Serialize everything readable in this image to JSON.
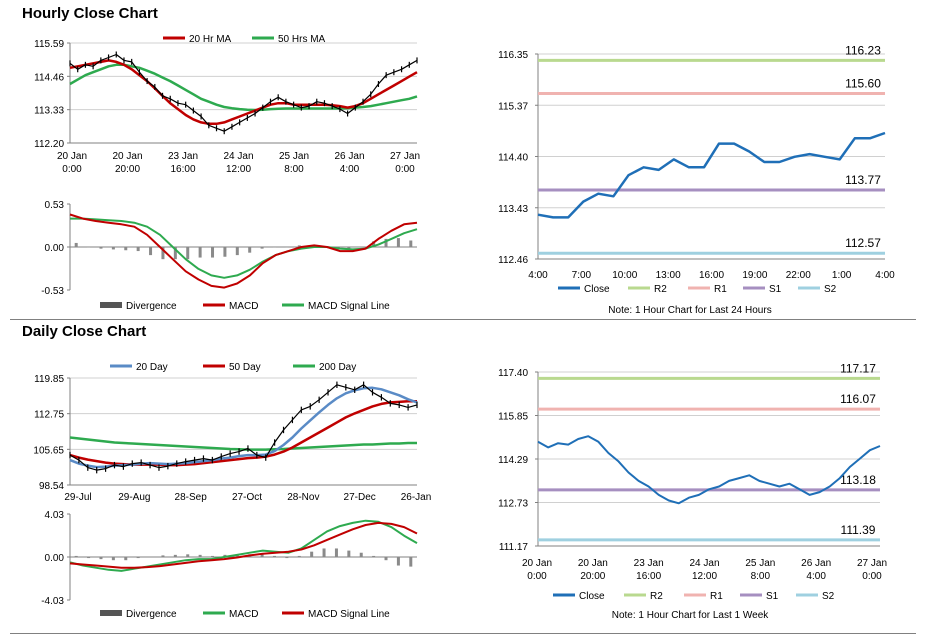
{
  "sections": {
    "hourly_title": "Hourly Close Chart",
    "daily_title": "Daily Close Chart"
  },
  "colors": {
    "ma_short": "#c00000",
    "ma_long": "#2eaa4f",
    "ma_20day": "#5a8bc6",
    "close": "#1f6fb7",
    "r2": "#b9d98f",
    "r1": "#f0b3b0",
    "s1": "#a68fc0",
    "s2": "#9fd0e0",
    "divergence": "#8a8a8a",
    "price": "#000000"
  },
  "chart_data": [
    {
      "id": "hourly_price",
      "type": "line",
      "legend": [
        "20 Hr MA",
        "50 Hrs MA"
      ],
      "legend_position": "top",
      "yticks": [
        "115.59",
        "114.46",
        "113.33",
        "112.20"
      ],
      "ylim": [
        112.2,
        115.59
      ],
      "xticks": [
        [
          "20 Jan",
          "0:00"
        ],
        [
          "20 Jan",
          "20:00"
        ],
        [
          "23 Jan",
          "16:00"
        ],
        [
          "24 Jan",
          "12:00"
        ],
        [
          "25 Jan",
          "8:00"
        ],
        [
          "26 Jan",
          "4:00"
        ],
        [
          "27 Jan",
          "0:00"
        ]
      ],
      "price": [
        114.9,
        114.7,
        114.85,
        114.8,
        115.0,
        115.1,
        115.2,
        115.0,
        114.95,
        114.6,
        114.3,
        114.1,
        113.8,
        113.7,
        113.55,
        113.5,
        113.3,
        113.1,
        112.8,
        112.7,
        112.6,
        112.75,
        112.9,
        113.05,
        113.2,
        113.4,
        113.6,
        113.75,
        113.6,
        113.5,
        113.4,
        113.45,
        113.6,
        113.55,
        113.45,
        113.35,
        113.2,
        113.4,
        113.6,
        113.85,
        114.2,
        114.5,
        114.6,
        114.7,
        114.85,
        115.0
      ],
      "ma_20hr": [
        114.75,
        114.8,
        114.85,
        114.9,
        114.95,
        115.0,
        114.95,
        114.85,
        114.7,
        114.5,
        114.3,
        114.05,
        113.8,
        113.55,
        113.35,
        113.15,
        113.0,
        112.9,
        112.85,
        112.85,
        112.9,
        113.0,
        113.1,
        113.2,
        113.3,
        113.4,
        113.5,
        113.55,
        113.55,
        113.5,
        113.5,
        113.5,
        113.5,
        113.5,
        113.48,
        113.45,
        113.4,
        113.45,
        113.55,
        113.7,
        113.85,
        114.0,
        114.15,
        114.3,
        114.45,
        114.6
      ],
      "ma_50hr": [
        114.2,
        114.35,
        114.5,
        114.6,
        114.7,
        114.8,
        114.85,
        114.85,
        114.8,
        114.75,
        114.65,
        114.55,
        114.42,
        114.3,
        114.15,
        114.0,
        113.85,
        113.7,
        113.6,
        113.5,
        113.42,
        113.38,
        113.35,
        113.33,
        113.32,
        113.33,
        113.35,
        113.36,
        113.37,
        113.37,
        113.37,
        113.37,
        113.37,
        113.37,
        113.37,
        113.37,
        113.38,
        113.4,
        113.42,
        113.45,
        113.5,
        113.55,
        113.6,
        113.65,
        113.7,
        113.78
      ]
    },
    {
      "id": "hourly_macd",
      "type": "line",
      "legend": [
        "Divergence",
        "MACD",
        "MACD Signal Line"
      ],
      "legend_position": "bottom",
      "yticks": [
        "0.53",
        "0.00",
        "-0.53"
      ],
      "ylim": [
        -0.53,
        0.53
      ],
      "macd": [
        0.4,
        0.35,
        0.32,
        0.3,
        0.28,
        0.25,
        0.15,
        0.0,
        -0.15,
        -0.3,
        -0.4,
        -0.48,
        -0.5,
        -0.45,
        -0.35,
        -0.2,
        -0.1,
        -0.05,
        0.0,
        0.02,
        0.0,
        -0.05,
        -0.05,
        -0.02,
        0.1,
        0.2,
        0.28,
        0.3
      ],
      "signal": [
        0.35,
        0.35,
        0.34,
        0.33,
        0.32,
        0.3,
        0.25,
        0.15,
        0.0,
        -0.15,
        -0.27,
        -0.35,
        -0.38,
        -0.35,
        -0.28,
        -0.18,
        -0.1,
        -0.05,
        -0.02,
        0.0,
        0.0,
        -0.02,
        -0.03,
        -0.02,
        0.03,
        0.1,
        0.17,
        0.22
      ],
      "divergence": [
        0.05,
        0.0,
        -0.02,
        -0.03,
        -0.04,
        -0.05,
        -0.1,
        -0.15,
        -0.15,
        -0.15,
        -0.13,
        -0.13,
        -0.12,
        -0.1,
        -0.07,
        -0.02,
        0.0,
        0.0,
        0.02,
        0.02,
        0.0,
        -0.03,
        -0.02,
        0.0,
        0.07,
        0.1,
        0.11,
        0.08
      ]
    },
    {
      "id": "hourly_levels",
      "type": "line",
      "legend": [
        "Close",
        "R2",
        "R1",
        "S1",
        "S2"
      ],
      "legend_position": "bottom",
      "note": "Note: 1 Hour Chart for Last 24 Hours",
      "yticks": [
        "116.35",
        "115.37",
        "114.40",
        "113.43",
        "112.46"
      ],
      "ylim": [
        112.46,
        116.35
      ],
      "xticks": [
        "4:00",
        "7:00",
        "10:00",
        "13:00",
        "16:00",
        "19:00",
        "22:00",
        "1:00",
        "4:00"
      ],
      "close": [
        113.3,
        113.25,
        113.25,
        113.55,
        113.7,
        113.65,
        114.05,
        114.2,
        114.15,
        114.35,
        114.2,
        114.2,
        114.65,
        114.65,
        114.5,
        114.3,
        114.3,
        114.4,
        114.45,
        114.4,
        114.35,
        114.75,
        114.75,
        114.85
      ],
      "levels": {
        "R2": 116.23,
        "R1": 115.6,
        "S1": 113.77,
        "S2": 112.57
      },
      "level_labels": [
        "116.23",
        "115.60",
        "113.77",
        "112.57"
      ]
    },
    {
      "id": "daily_price",
      "type": "line",
      "legend": [
        "20 Day",
        "50 Day",
        "200 Day"
      ],
      "legend_position": "top",
      "yticks": [
        "119.85",
        "112.75",
        "105.65",
        "98.54"
      ],
      "ylim": [
        98.54,
        119.85
      ],
      "xticks": [
        "29-Jul",
        "29-Aug",
        "28-Sep",
        "27-Oct",
        "28-Nov",
        "27-Dec",
        "26-Jan"
      ],
      "price": [
        104.5,
        103.5,
        102.0,
        101.5,
        101.8,
        102.5,
        102.2,
        102.8,
        103.0,
        102.5,
        102.0,
        102.3,
        102.8,
        103.2,
        103.5,
        103.8,
        103.5,
        104.2,
        104.8,
        105.2,
        105.8,
        104.5,
        104.0,
        107.0,
        109.5,
        111.5,
        113.5,
        114.2,
        115.5,
        117.0,
        118.5,
        118.0,
        117.5,
        118.5,
        117.0,
        116.0,
        114.8,
        114.5,
        114.0,
        114.5
      ],
      "ma_20day": [
        103.5,
        102.8,
        102.4,
        102.1,
        102.2,
        102.4,
        102.5,
        102.6,
        102.8,
        102.9,
        102.8,
        102.7,
        102.8,
        102.9,
        103.1,
        103.3,
        103.5,
        103.8,
        104.0,
        104.3,
        104.5,
        104.5,
        104.6,
        105.3,
        106.5,
        108.0,
        109.8,
        111.4,
        113.0,
        114.5,
        115.8,
        116.8,
        117.4,
        117.8,
        117.9,
        117.6,
        117.0,
        116.4,
        115.6,
        115.0
      ],
      "ma_50day": [
        104.5,
        104.0,
        103.6,
        103.3,
        103.0,
        102.8,
        102.7,
        102.6,
        102.6,
        102.6,
        102.6,
        102.5,
        102.5,
        102.6,
        102.7,
        102.9,
        103.1,
        103.3,
        103.5,
        103.7,
        103.9,
        104.0,
        104.2,
        104.6,
        105.2,
        106.0,
        107.0,
        108.0,
        109.0,
        110.0,
        111.0,
        112.0,
        112.8,
        113.5,
        114.2,
        114.7,
        115.0,
        115.1,
        115.2,
        115.2
      ],
      "ma_200day": [
        108.0,
        107.8,
        107.6,
        107.4,
        107.2,
        107.0,
        106.9,
        106.8,
        106.7,
        106.6,
        106.5,
        106.4,
        106.3,
        106.2,
        106.1,
        106.0,
        105.9,
        105.8,
        105.7,
        105.65,
        105.6,
        105.6,
        105.6,
        105.65,
        105.7,
        105.8,
        105.9,
        106.0,
        106.1,
        106.2,
        106.3,
        106.4,
        106.5,
        106.6,
        106.6,
        106.7,
        106.8,
        106.8,
        106.9,
        106.9
      ]
    },
    {
      "id": "daily_macd",
      "type": "line",
      "legend": [
        "Divergence",
        "MACD",
        "MACD Signal Line"
      ],
      "legend_position": "bottom",
      "yticks": [
        "4.03",
        "0.00",
        "-4.03"
      ],
      "ylim": [
        -4.03,
        4.03
      ],
      "macd": [
        -0.5,
        -0.8,
        -1.0,
        -1.2,
        -1.3,
        -1.1,
        -0.9,
        -0.7,
        -0.5,
        -0.3,
        -0.2,
        -0.2,
        0.0,
        0.2,
        0.4,
        0.6,
        0.5,
        0.4,
        0.8,
        1.6,
        2.4,
        2.9,
        3.2,
        3.4,
        3.3,
        2.8,
        2.0,
        1.3
      ],
      "signal": [
        -0.6,
        -0.7,
        -0.8,
        -0.9,
        -1.0,
        -1.0,
        -0.95,
        -0.85,
        -0.7,
        -0.55,
        -0.4,
        -0.3,
        -0.2,
        -0.05,
        0.15,
        0.3,
        0.4,
        0.5,
        0.7,
        1.1,
        1.6,
        2.1,
        2.6,
        3.0,
        3.2,
        3.1,
        2.8,
        2.2
      ],
      "divergence": [
        0.1,
        -0.1,
        -0.2,
        -0.3,
        -0.3,
        -0.1,
        0.05,
        0.15,
        0.2,
        0.25,
        0.2,
        0.1,
        0.2,
        0.25,
        0.25,
        0.3,
        0.1,
        -0.1,
        0.1,
        0.5,
        0.8,
        0.8,
        0.6,
        0.4,
        0.1,
        -0.3,
        -0.8,
        -0.9
      ]
    },
    {
      "id": "daily_levels",
      "type": "line",
      "legend": [
        "Close",
        "R2",
        "R1",
        "S1",
        "S2"
      ],
      "legend_position": "bottom",
      "note": "Note: 1 Hour Chart for Last 1 Week",
      "yticks": [
        "117.40",
        "115.85",
        "114.29",
        "112.73",
        "111.17"
      ],
      "ylim": [
        111.17,
        117.4
      ],
      "xticks": [
        [
          "20 Jan",
          "0:00"
        ],
        [
          "20 Jan",
          "20:00"
        ],
        [
          "23 Jan",
          "16:00"
        ],
        [
          "24 Jan",
          "12:00"
        ],
        [
          "25 Jan",
          "8:00"
        ],
        [
          "26 Jan",
          "4:00"
        ],
        [
          "27 Jan",
          "0:00"
        ]
      ],
      "close": [
        114.9,
        114.7,
        114.85,
        114.8,
        115.0,
        115.1,
        114.9,
        114.5,
        114.2,
        113.8,
        113.5,
        113.3,
        113.0,
        112.8,
        112.7,
        112.9,
        113.0,
        113.2,
        113.3,
        113.5,
        113.6,
        113.7,
        113.5,
        113.4,
        113.3,
        113.4,
        113.2,
        113.0,
        113.1,
        113.3,
        113.6,
        114.0,
        114.3,
        114.6,
        114.75
      ],
      "levels": {
        "R2": 117.17,
        "R1": 116.07,
        "S1": 113.18,
        "S2": 111.39
      },
      "level_labels": [
        "117.17",
        "116.07",
        "113.18",
        "111.39"
      ]
    }
  ]
}
